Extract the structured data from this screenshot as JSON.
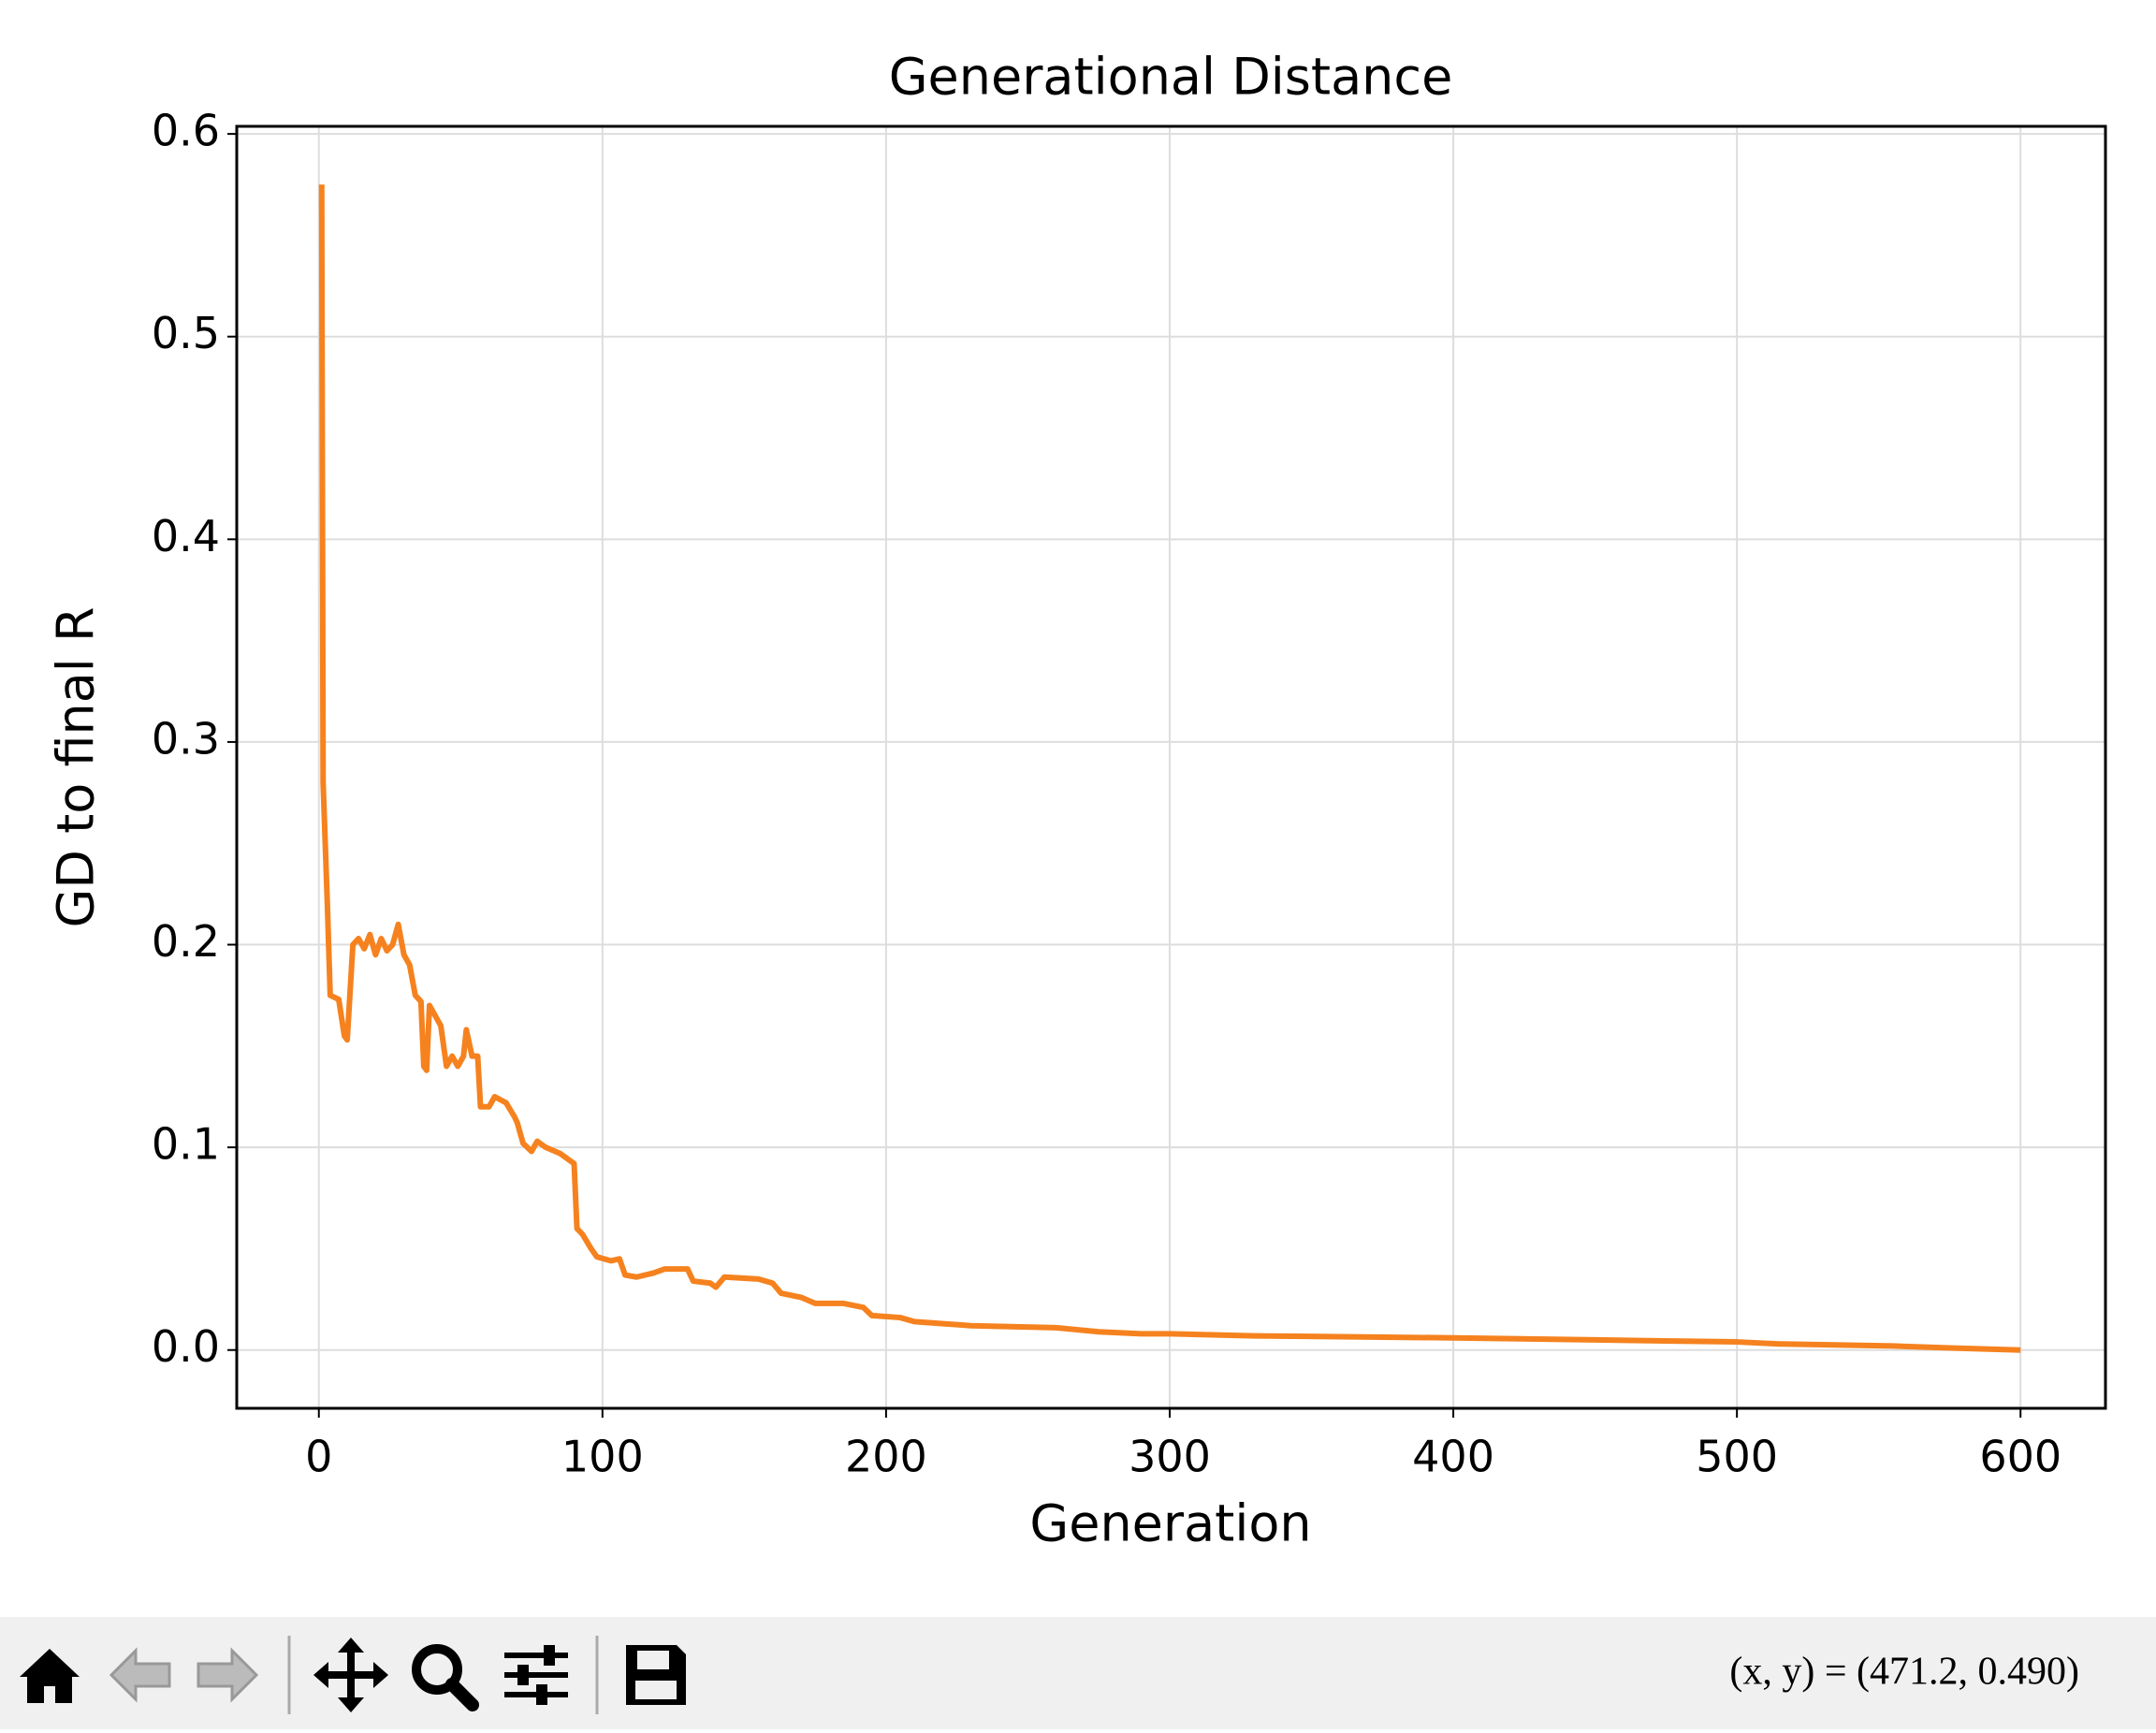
{
  "chart_data": {
    "type": "line",
    "title": "Generational Distance",
    "xlabel": "Generation",
    "ylabel": "GD to final R",
    "x": [
      1,
      1.5,
      3,
      4,
      7,
      9,
      10,
      12,
      14,
      16,
      18,
      20,
      22,
      24,
      26,
      28,
      30,
      32,
      34,
      36,
      37,
      38,
      39,
      41,
      43,
      45,
      47,
      49,
      51,
      52,
      54,
      56,
      57,
      60,
      62,
      66,
      69,
      70,
      72,
      75,
      77,
      80,
      85,
      90,
      91,
      93,
      96,
      98,
      103,
      106,
      108,
      112,
      118,
      122,
      130,
      132,
      138,
      140,
      143,
      155,
      160,
      163,
      170,
      175,
      185,
      192,
      195,
      205,
      210,
      230,
      260,
      275,
      290,
      300,
      330,
      400,
      450,
      500,
      515,
      555,
      575,
      600
    ],
    "values": [
      0.575,
      0.28,
      0.22,
      0.175,
      0.173,
      0.155,
      0.153,
      0.2,
      0.203,
      0.198,
      0.205,
      0.195,
      0.203,
      0.197,
      0.2,
      0.21,
      0.195,
      0.19,
      0.175,
      0.172,
      0.14,
      0.138,
      0.17,
      0.165,
      0.16,
      0.14,
      0.145,
      0.14,
      0.145,
      0.158,
      0.145,
      0.145,
      0.12,
      0.12,
      0.125,
      0.122,
      0.115,
      0.112,
      0.102,
      0.098,
      0.103,
      0.1,
      0.097,
      0.092,
      0.06,
      0.057,
      0.05,
      0.046,
      0.044,
      0.045,
      0.037,
      0.036,
      0.038,
      0.04,
      0.04,
      0.034,
      0.033,
      0.031,
      0.036,
      0.035,
      0.033,
      0.028,
      0.026,
      0.023,
      0.023,
      0.021,
      0.017,
      0.016,
      0.014,
      0.012,
      0.011,
      0.009,
      0.008,
      0.008,
      0.007,
      0.006,
      0.005,
      0.004,
      0.003,
      0.002,
      0.001,
      0
    ],
    "color": "#f5821f",
    "xlim": [
      -28.95,
      629.95
    ],
    "xticks": [
      0,
      100,
      200,
      300,
      400,
      500,
      600
    ],
    "ylim": [
      -0.02875,
      0.60375
    ],
    "yticks": [
      {
        "value": 0,
        "label": "0.0"
      },
      0.1,
      0.2,
      0.3,
      0.4,
      0.5,
      0.6
    ],
    "grid": true
  },
  "toolbar": {
    "status": "(x, y) = (471.2, 0.490)"
  }
}
